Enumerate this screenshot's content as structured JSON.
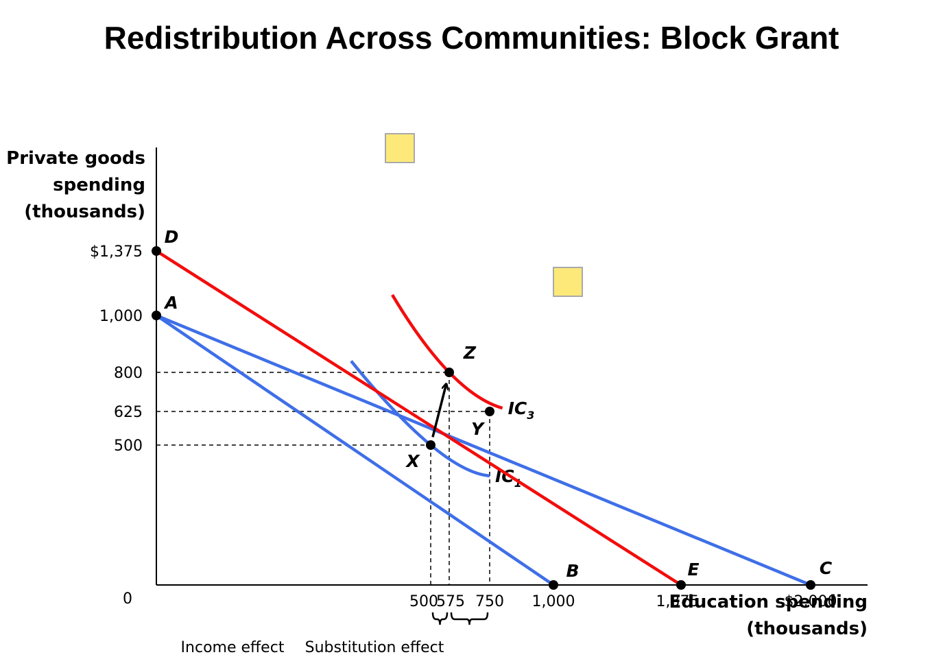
{
  "title": "Redistribution Across Communities: Block Grant",
  "y_axis": {
    "label_lines": [
      "Private goods",
      "spending",
      "(thousands)"
    ]
  },
  "x_axis": {
    "label_lines": [
      "Education spending",
      "(thousands)"
    ]
  },
  "origin_label": "0",
  "y_ticks": [
    {
      "value": 1375,
      "label": "$1,375"
    },
    {
      "value": 1000,
      "label": "1,000"
    },
    {
      "value": 800,
      "label": "800"
    },
    {
      "value": 625,
      "label": "625"
    },
    {
      "value": 500,
      "label": "500"
    }
  ],
  "x_ticks": [
    {
      "value": 500,
      "label": "500"
    },
    {
      "value": 575,
      "label": "575"
    },
    {
      "value": 750,
      "label": "750"
    },
    {
      "value": 1000,
      "label": "1,000"
    },
    {
      "value": 1375,
      "label": "1,375"
    },
    {
      "value": 2000,
      "label": "$2,000"
    }
  ],
  "points": [
    {
      "id": "D",
      "label": "D",
      "x": 0,
      "y": 1375
    },
    {
      "id": "A",
      "label": "A",
      "x": 0,
      "y": 1000
    },
    {
      "id": "Z",
      "label": "Z",
      "x": 575,
      "y": 800
    },
    {
      "id": "Y",
      "label": "Y",
      "x": 750,
      "y": 625
    },
    {
      "id": "X",
      "label": "X",
      "x": 500,
      "y": 500
    },
    {
      "id": "B",
      "label": "B",
      "x": 1000,
      "y": 0
    },
    {
      "id": "E",
      "label": "E",
      "x": 1375,
      "y": 0
    },
    {
      "id": "C",
      "label": "C",
      "x": 2000,
      "y": 0
    }
  ],
  "budget_lines": [
    {
      "id": "AB",
      "from": "A",
      "to": "B",
      "color": "#3f6fe8"
    },
    {
      "id": "AC",
      "from": "A",
      "to": "C",
      "color": "#3f6fe8"
    },
    {
      "id": "DE",
      "from": "D",
      "to": "E",
      "color": "#f20d0d"
    }
  ],
  "indifference_curves": [
    {
      "id": "IC1",
      "label": "IC",
      "subscript": "1",
      "color": "#3f6fe8",
      "points": [
        [
          355,
          840
        ],
        [
          500,
          500
        ],
        [
          750,
          390
        ]
      ]
    },
    {
      "id": "IC3",
      "label": "IC",
      "subscript": "3",
      "color": "#f20d0d",
      "points": [
        [
          430,
          1120
        ],
        [
          575,
          800
        ],
        [
          800,
          640
        ]
      ]
    }
  ],
  "arrow": {
    "from": "X",
    "to": "Z"
  },
  "effects": [
    {
      "label": "Income effect",
      "from": 500,
      "to": 575
    },
    {
      "label": "Substitution effect",
      "from": 575,
      "to": 750
    }
  ],
  "colors": {
    "blue": "#3f6fe8",
    "red": "#f20d0d",
    "note": "#fce97a"
  }
}
